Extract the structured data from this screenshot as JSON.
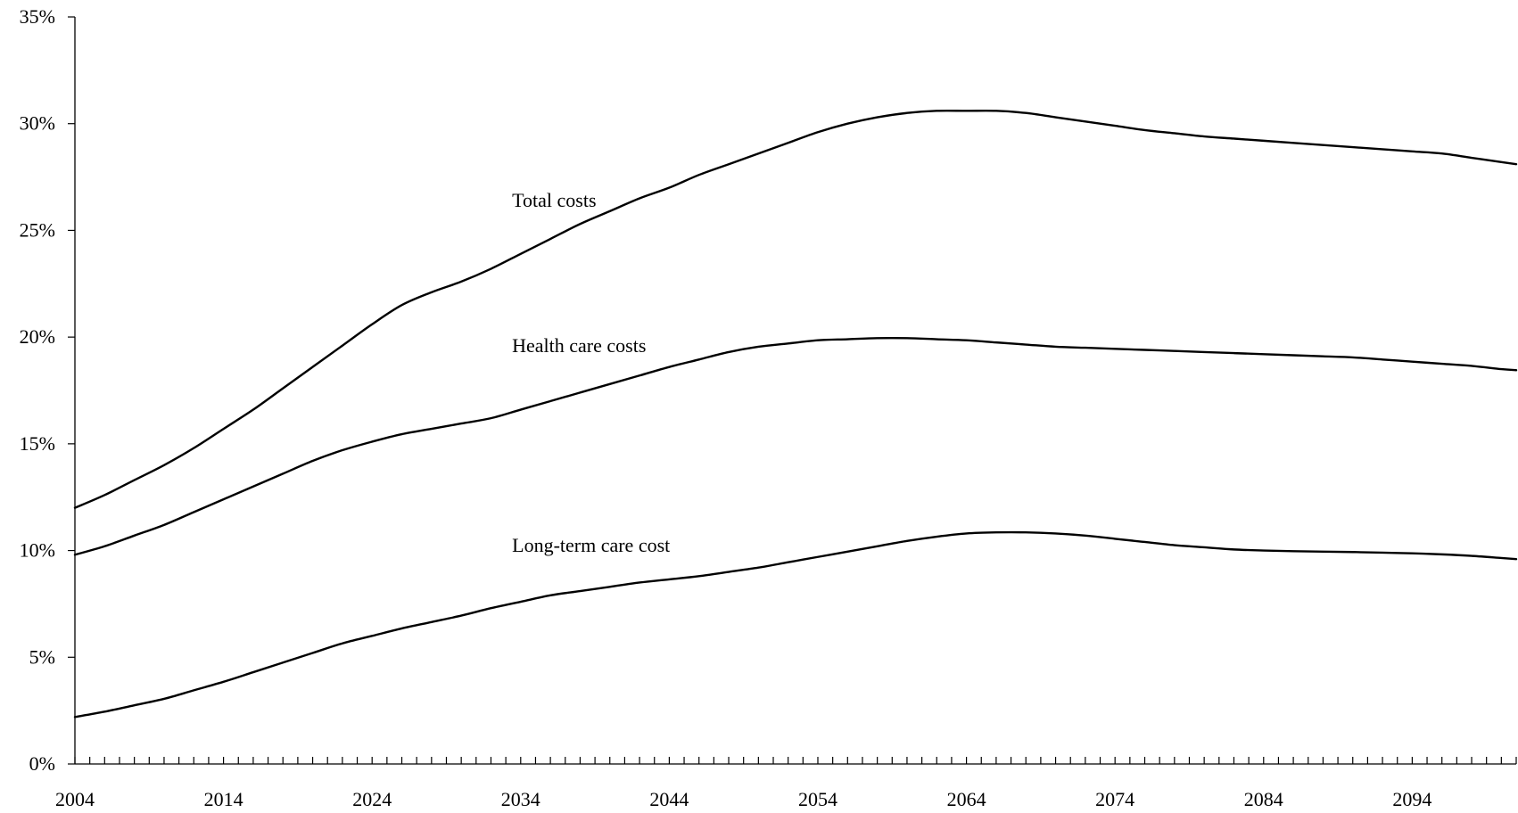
{
  "chart_data": {
    "type": "line",
    "title": "",
    "xlabel": "",
    "ylabel": "",
    "xlim": [
      2004,
      2101
    ],
    "ylim": [
      0,
      35
    ],
    "y_ticks": [
      0,
      5,
      10,
      15,
      20,
      25,
      30,
      35
    ],
    "y_tick_labels": [
      "0%",
      "5%",
      "10%",
      "15%",
      "20%",
      "25%",
      "30%",
      "35%"
    ],
    "x_ticks": [
      2004,
      2014,
      2024,
      2034,
      2044,
      2054,
      2064,
      2074,
      2084,
      2094
    ],
    "x_tick_labels": [
      "2004",
      "2014",
      "2024",
      "2034",
      "2044",
      "2054",
      "2064",
      "2074",
      "2084",
      "2094"
    ],
    "x_minor_step": 1,
    "grid": false,
    "legend": "none",
    "series": [
      {
        "name": "Total costs",
        "label_anchor": {
          "x": 2033,
          "y": 26.1
        },
        "x": [
          2004,
          2006,
          2008,
          2010,
          2012,
          2014,
          2016,
          2018,
          2020,
          2022,
          2024,
          2026,
          2028,
          2030,
          2032,
          2034,
          2036,
          2038,
          2040,
          2042,
          2044,
          2046,
          2048,
          2050,
          2052,
          2054,
          2056,
          2058,
          2060,
          2062,
          2064,
          2066,
          2068,
          2070,
          2072,
          2074,
          2076,
          2078,
          2080,
          2082,
          2084,
          2086,
          2088,
          2090,
          2092,
          2094,
          2096,
          2098,
          2100,
          2101
        ],
        "values": [
          12.0,
          12.6,
          13.3,
          14.0,
          14.8,
          15.7,
          16.6,
          17.6,
          18.6,
          19.6,
          20.6,
          21.5,
          22.1,
          22.6,
          23.2,
          23.9,
          24.6,
          25.3,
          25.9,
          26.5,
          27.0,
          27.6,
          28.1,
          28.6,
          29.1,
          29.6,
          30.0,
          30.3,
          30.5,
          30.6,
          30.6,
          30.6,
          30.5,
          30.3,
          30.1,
          29.9,
          29.7,
          29.55,
          29.4,
          29.3,
          29.2,
          29.1,
          29.0,
          28.9,
          28.8,
          28.7,
          28.6,
          28.4,
          28.2,
          28.1
        ]
      },
      {
        "name": "Health care costs",
        "label_anchor": {
          "x": 2033,
          "y": 19.3
        },
        "x": [
          2004,
          2006,
          2008,
          2010,
          2012,
          2014,
          2016,
          2018,
          2020,
          2022,
          2024,
          2026,
          2028,
          2030,
          2032,
          2034,
          2036,
          2038,
          2040,
          2042,
          2044,
          2046,
          2048,
          2050,
          2052,
          2054,
          2056,
          2058,
          2060,
          2062,
          2064,
          2066,
          2068,
          2070,
          2072,
          2074,
          2076,
          2078,
          2080,
          2082,
          2084,
          2086,
          2088,
          2090,
          2092,
          2094,
          2096,
          2098,
          2100,
          2101
        ],
        "values": [
          9.8,
          10.2,
          10.7,
          11.2,
          11.8,
          12.4,
          13.0,
          13.6,
          14.2,
          14.7,
          15.1,
          15.45,
          15.7,
          15.95,
          16.2,
          16.6,
          17.0,
          17.4,
          17.8,
          18.2,
          18.6,
          18.95,
          19.3,
          19.55,
          19.7,
          19.85,
          19.9,
          19.95,
          19.95,
          19.9,
          19.85,
          19.75,
          19.65,
          19.55,
          19.5,
          19.45,
          19.4,
          19.35,
          19.3,
          19.25,
          19.2,
          19.15,
          19.1,
          19.05,
          18.95,
          18.85,
          18.75,
          18.65,
          18.5,
          18.45
        ]
      },
      {
        "name": "Long-term care cost",
        "label_anchor": {
          "x": 2033,
          "y": 9.95
        },
        "x": [
          2004,
          2006,
          2008,
          2010,
          2012,
          2014,
          2016,
          2018,
          2020,
          2022,
          2024,
          2026,
          2028,
          2030,
          2032,
          2034,
          2036,
          2038,
          2040,
          2042,
          2044,
          2046,
          2048,
          2050,
          2052,
          2054,
          2056,
          2058,
          2060,
          2062,
          2064,
          2066,
          2068,
          2070,
          2072,
          2074,
          2076,
          2078,
          2080,
          2082,
          2084,
          2086,
          2088,
          2090,
          2092,
          2094,
          2096,
          2098,
          2100,
          2101
        ],
        "values": [
          2.2,
          2.45,
          2.75,
          3.05,
          3.45,
          3.85,
          4.3,
          4.75,
          5.2,
          5.65,
          6.0,
          6.35,
          6.65,
          6.95,
          7.3,
          7.6,
          7.9,
          8.1,
          8.3,
          8.5,
          8.65,
          8.8,
          9.0,
          9.2,
          9.45,
          9.7,
          9.95,
          10.2,
          10.45,
          10.65,
          10.8,
          10.85,
          10.85,
          10.8,
          10.7,
          10.55,
          10.4,
          10.25,
          10.15,
          10.05,
          10.0,
          9.97,
          9.95,
          9.93,
          9.9,
          9.87,
          9.82,
          9.75,
          9.65,
          9.6
        ]
      }
    ]
  }
}
